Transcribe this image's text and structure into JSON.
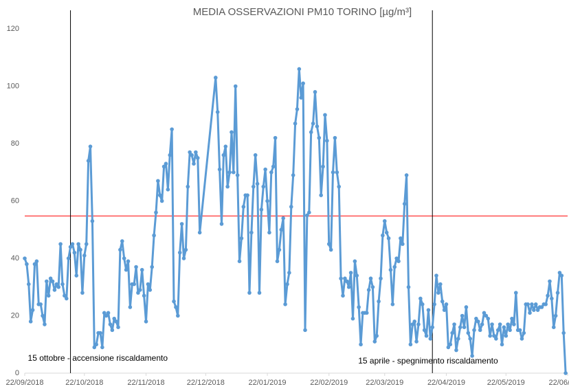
{
  "chart_data": {
    "type": "line",
    "title": "MEDIA OSSERVAZIONI PM10 TORINO [µg/m³]",
    "x": [
      "22/09/2018",
      "23/09/2018",
      "24/09/2018",
      "25/09/2018",
      "26/09/2018",
      "27/09/2018",
      "28/09/2018",
      "29/09/2018",
      "30/09/2018",
      "01/10/2018",
      "02/10/2018",
      "03/10/2018",
      "04/10/2018",
      "05/10/2018",
      "06/10/2018",
      "07/10/2018",
      "08/10/2018",
      "09/10/2018",
      "10/10/2018",
      "11/10/2018",
      "12/10/2018",
      "13/10/2018",
      "14/10/2018",
      "15/10/2018",
      "16/10/2018",
      "17/10/2018",
      "18/10/2018",
      "19/10/2018",
      "20/10/2018",
      "21/10/2018",
      "22/10/2018",
      "23/10/2018",
      "24/10/2018",
      "25/10/2018",
      "26/10/2018",
      "27/10/2018",
      "28/10/2018",
      "29/10/2018",
      "30/10/2018",
      "31/10/2018",
      "01/11/2018",
      "02/11/2018",
      "03/11/2018",
      "04/11/2018",
      "05/11/2018",
      "06/11/2018",
      "07/11/2018",
      "08/11/2018",
      "09/11/2018",
      "10/11/2018",
      "11/11/2018",
      "12/11/2018",
      "13/11/2018",
      "14/11/2018",
      "15/11/2018",
      "16/11/2018",
      "17/11/2018",
      "18/11/2018",
      "19/11/2018",
      "20/11/2018",
      "21/11/2018",
      "22/11/2018",
      "23/11/2018",
      "24/11/2018",
      "25/11/2018",
      "26/11/2018",
      "27/11/2018",
      "28/11/2018",
      "29/11/2018",
      "30/11/2018",
      "01/12/2018",
      "02/12/2018",
      "03/12/2018",
      "04/12/2018",
      "05/12/2018",
      "06/12/2018",
      "07/12/2018",
      "08/12/2018",
      "09/12/2018",
      "10/12/2018",
      "11/12/2018",
      "12/12/2018",
      "13/12/2018",
      "14/12/2018",
      "15/12/2018",
      "16/12/2018",
      "17/12/2018",
      "18/12/2018",
      "19/12/2018",
      "27/12/2018",
      "28/12/2018",
      "29/12/2018",
      "30/12/2018",
      "31/12/2018",
      "01/01/2019",
      "02/01/2019",
      "03/01/2019",
      "04/01/2019",
      "05/01/2019",
      "06/01/2019",
      "07/01/2019",
      "08/01/2019",
      "09/01/2019",
      "10/01/2019",
      "11/01/2019",
      "12/01/2019",
      "13/01/2019",
      "14/01/2019",
      "15/01/2019",
      "16/01/2019",
      "17/01/2019",
      "18/01/2019",
      "19/01/2019",
      "20/01/2019",
      "21/01/2019",
      "22/01/2019",
      "23/01/2019",
      "24/01/2019",
      "25/01/2019",
      "26/01/2019",
      "27/01/2019",
      "28/01/2019",
      "29/01/2019",
      "30/01/2019",
      "31/01/2019",
      "01/02/2019",
      "02/02/2019",
      "03/02/2019",
      "04/02/2019",
      "05/02/2019",
      "06/02/2019",
      "07/02/2019",
      "08/02/2019",
      "09/02/2019",
      "10/02/2019",
      "11/02/2019",
      "12/02/2019",
      "13/02/2019",
      "14/02/2019",
      "15/02/2019",
      "16/02/2019",
      "17/02/2019",
      "18/02/2019",
      "19/02/2019",
      "20/02/2019",
      "21/02/2019",
      "22/02/2019",
      "23/02/2019",
      "24/02/2019",
      "25/02/2019",
      "26/02/2019",
      "27/02/2019",
      "28/02/2019",
      "01/03/2019",
      "02/03/2019",
      "03/03/2019",
      "04/03/2019",
      "05/03/2019",
      "06/03/2019",
      "07/03/2019",
      "08/03/2019",
      "09/03/2019",
      "10/03/2019",
      "11/03/2019",
      "12/03/2019",
      "13/03/2019",
      "14/03/2019",
      "15/03/2019",
      "16/03/2019",
      "17/03/2019",
      "18/03/2019",
      "19/03/2019",
      "20/03/2019",
      "21/03/2019",
      "22/03/2019",
      "23/03/2019",
      "24/03/2019",
      "25/03/2019",
      "26/03/2019",
      "27/03/2019",
      "28/03/2019",
      "29/03/2019",
      "30/03/2019",
      "31/03/2019",
      "01/04/2019",
      "02/04/2019",
      "03/04/2019",
      "04/04/2019",
      "05/04/2019",
      "06/04/2019",
      "07/04/2019",
      "08/04/2019",
      "09/04/2019",
      "10/04/2019",
      "11/04/2019",
      "12/04/2019",
      "13/04/2019",
      "14/04/2019",
      "15/04/2019",
      "16/04/2019",
      "17/04/2019",
      "18/04/2019",
      "19/04/2019",
      "20/04/2019",
      "21/04/2019",
      "22/04/2019",
      "23/04/2019",
      "24/04/2019",
      "25/04/2019",
      "26/04/2019",
      "27/04/2019",
      "28/04/2019",
      "29/04/2019",
      "30/04/2019",
      "01/05/2019",
      "02/05/2019",
      "03/05/2019",
      "04/05/2019",
      "05/05/2019",
      "06/05/2019",
      "07/05/2019",
      "08/05/2019",
      "09/05/2019",
      "10/05/2019",
      "11/05/2019",
      "12/05/2019",
      "13/05/2019",
      "14/05/2019",
      "15/05/2019",
      "16/05/2019",
      "17/05/2019",
      "18/05/2019",
      "19/05/2019",
      "20/05/2019",
      "21/05/2019",
      "22/05/2019",
      "23/05/2019",
      "24/05/2019",
      "25/05/2019",
      "26/05/2019",
      "27/05/2019",
      "28/05/2019",
      "29/05/2019",
      "30/05/2019",
      "31/05/2019",
      "01/06/2019",
      "02/06/2019",
      "03/06/2019",
      "04/06/2019",
      "05/06/2019",
      "06/06/2019",
      "07/06/2019",
      "08/06/2019",
      "09/06/2019",
      "10/06/2019",
      "11/06/2019",
      "12/06/2019",
      "13/06/2019",
      "14/06/2019",
      "15/06/2019",
      "16/06/2019",
      "17/06/2019",
      "18/06/2019",
      "19/06/2019",
      "20/06/2019",
      "21/06/2019"
    ],
    "values": [
      40,
      38,
      31,
      18,
      22,
      38,
      39,
      24,
      24,
      20,
      17,
      32,
      27,
      33,
      32,
      29,
      31,
      30,
      45,
      31,
      27,
      26,
      40,
      44,
      45,
      42,
      34,
      45,
      43,
      28,
      41,
      45,
      74,
      79,
      53,
      9,
      10,
      14,
      14,
      9,
      21,
      20,
      21,
      17,
      15,
      19,
      18,
      16,
      43,
      46,
      40,
      36,
      39,
      23,
      31,
      31,
      37,
      28,
      29,
      36,
      27,
      18,
      31,
      29,
      37,
      48,
      56,
      67,
      62,
      60,
      72,
      73,
      64,
      76,
      85,
      25,
      23,
      20,
      42,
      52,
      40,
      43,
      65,
      77,
      76,
      73,
      77,
      75,
      49,
      103,
      91,
      71,
      52,
      76,
      79,
      65,
      70,
      84,
      70,
      100,
      69,
      39,
      47,
      58,
      62,
      62,
      28,
      49,
      65,
      76,
      66,
      28,
      57,
      65,
      71,
      60,
      49,
      70,
      72,
      82,
      39,
      43,
      50,
      54,
      24,
      31,
      35,
      58,
      69,
      87,
      92,
      106,
      96,
      101,
      15,
      55,
      56,
      84,
      87,
      98,
      86,
      82,
      62,
      72,
      90,
      81,
      45,
      43,
      70,
      82,
      70,
      65,
      33,
      27,
      33,
      32,
      30,
      35,
      19,
      39,
      34,
      23,
      10,
      21,
      21,
      21,
      29,
      33,
      30,
      11,
      13,
      25,
      33,
      48,
      53,
      49,
      47,
      36,
      24,
      37,
      40,
      39,
      47,
      45,
      59,
      69,
      30,
      10,
      17,
      18,
      11,
      17,
      26,
      24,
      15,
      13,
      22,
      12,
      16,
      24,
      34,
      28,
      31,
      25,
      22,
      24,
      9,
      10,
      14,
      17,
      8,
      12,
      16,
      20,
      16,
      23,
      14,
      12,
      6,
      15,
      19,
      18,
      15,
      17,
      21,
      20,
      19,
      13,
      17,
      13,
      12,
      15,
      17,
      10,
      16,
      13,
      17,
      15,
      19,
      17,
      28,
      15,
      15,
      12,
      14,
      24,
      24,
      21,
      24,
      22,
      24,
      22,
      23,
      23,
      24,
      24,
      27,
      32,
      26,
      16,
      20,
      28,
      35,
      34,
      14,
      0
    ],
    "color": "#5b9bd5",
    "xlim": [
      "22/09/2018",
      "22/06/2019"
    ],
    "xticks": [
      "22/09/2018",
      "22/10/2018",
      "22/11/2018",
      "22/12/2018",
      "22/01/2019",
      "22/02/2019",
      "22/03/2019",
      "22/04/2019",
      "22/05/2019",
      "22/06/2019"
    ],
    "ylim": [
      0,
      120
    ],
    "yticks": [
      0,
      20,
      40,
      60,
      80,
      100,
      120
    ],
    "reference_line": {
      "value": 54.8,
      "color": "#ff0000"
    },
    "annotations": [
      {
        "x": "15/10/2018",
        "text": "15 ottobre - accensione riscaldamento"
      },
      {
        "x": "15/04/2019",
        "text": "15 aprile - spegnimento riscaldamento"
      }
    ]
  }
}
